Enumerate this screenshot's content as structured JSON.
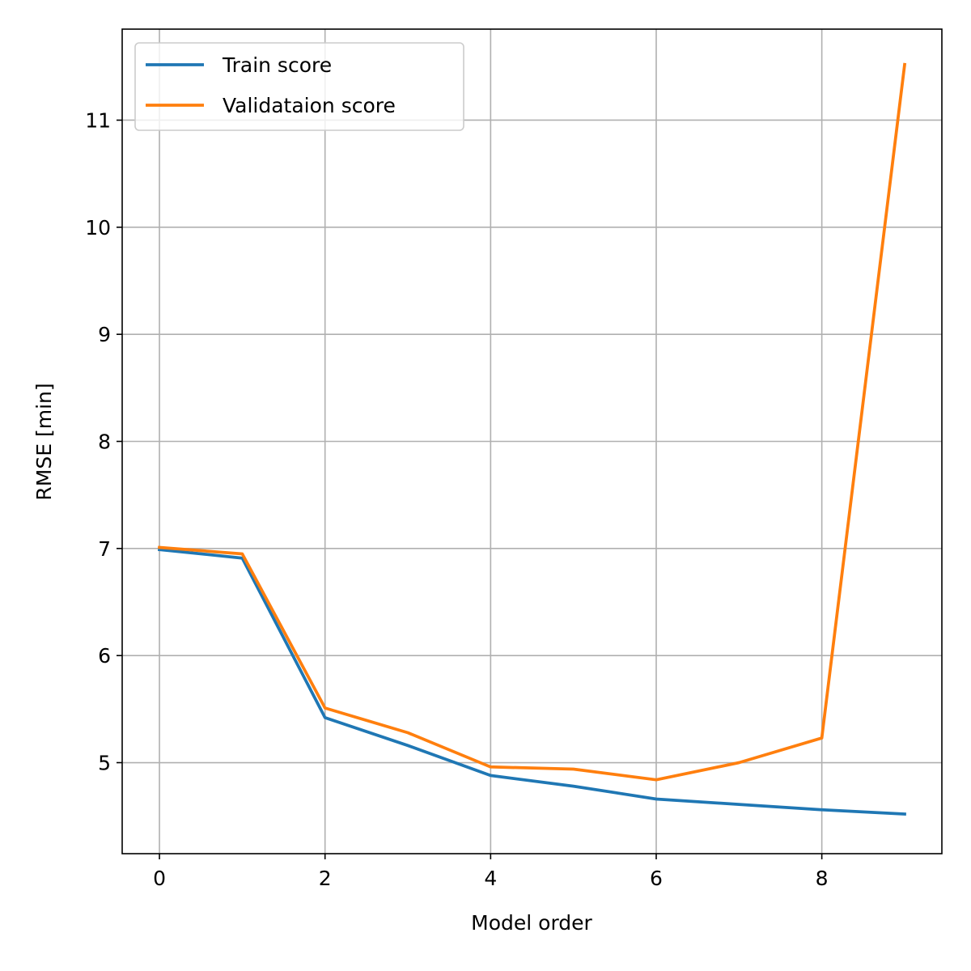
{
  "chart_data": {
    "type": "line",
    "xlabel": "Model order",
    "ylabel": "RMSE [min]",
    "xlim": [
      -0.45,
      9.45
    ],
    "ylim": [
      4.15,
      11.85
    ],
    "xticks": [
      0,
      2,
      4,
      6,
      8
    ],
    "yticks": [
      5,
      6,
      7,
      8,
      9,
      10,
      11
    ],
    "grid": true,
    "legend_position": "upper-left",
    "x": [
      0,
      1,
      2,
      3,
      4,
      5,
      6,
      7,
      8,
      9
    ],
    "series": [
      {
        "name": "Train score",
        "color": "#1f77b4",
        "values": [
          6.99,
          6.91,
          5.42,
          5.16,
          4.88,
          4.78,
          4.66,
          4.61,
          4.56,
          4.52
        ]
      },
      {
        "name": "Validataion score",
        "color": "#ff7f0e",
        "values": [
          7.01,
          6.95,
          5.51,
          5.28,
          4.96,
          4.94,
          4.84,
          5.0,
          5.23,
          11.52
        ]
      }
    ]
  }
}
